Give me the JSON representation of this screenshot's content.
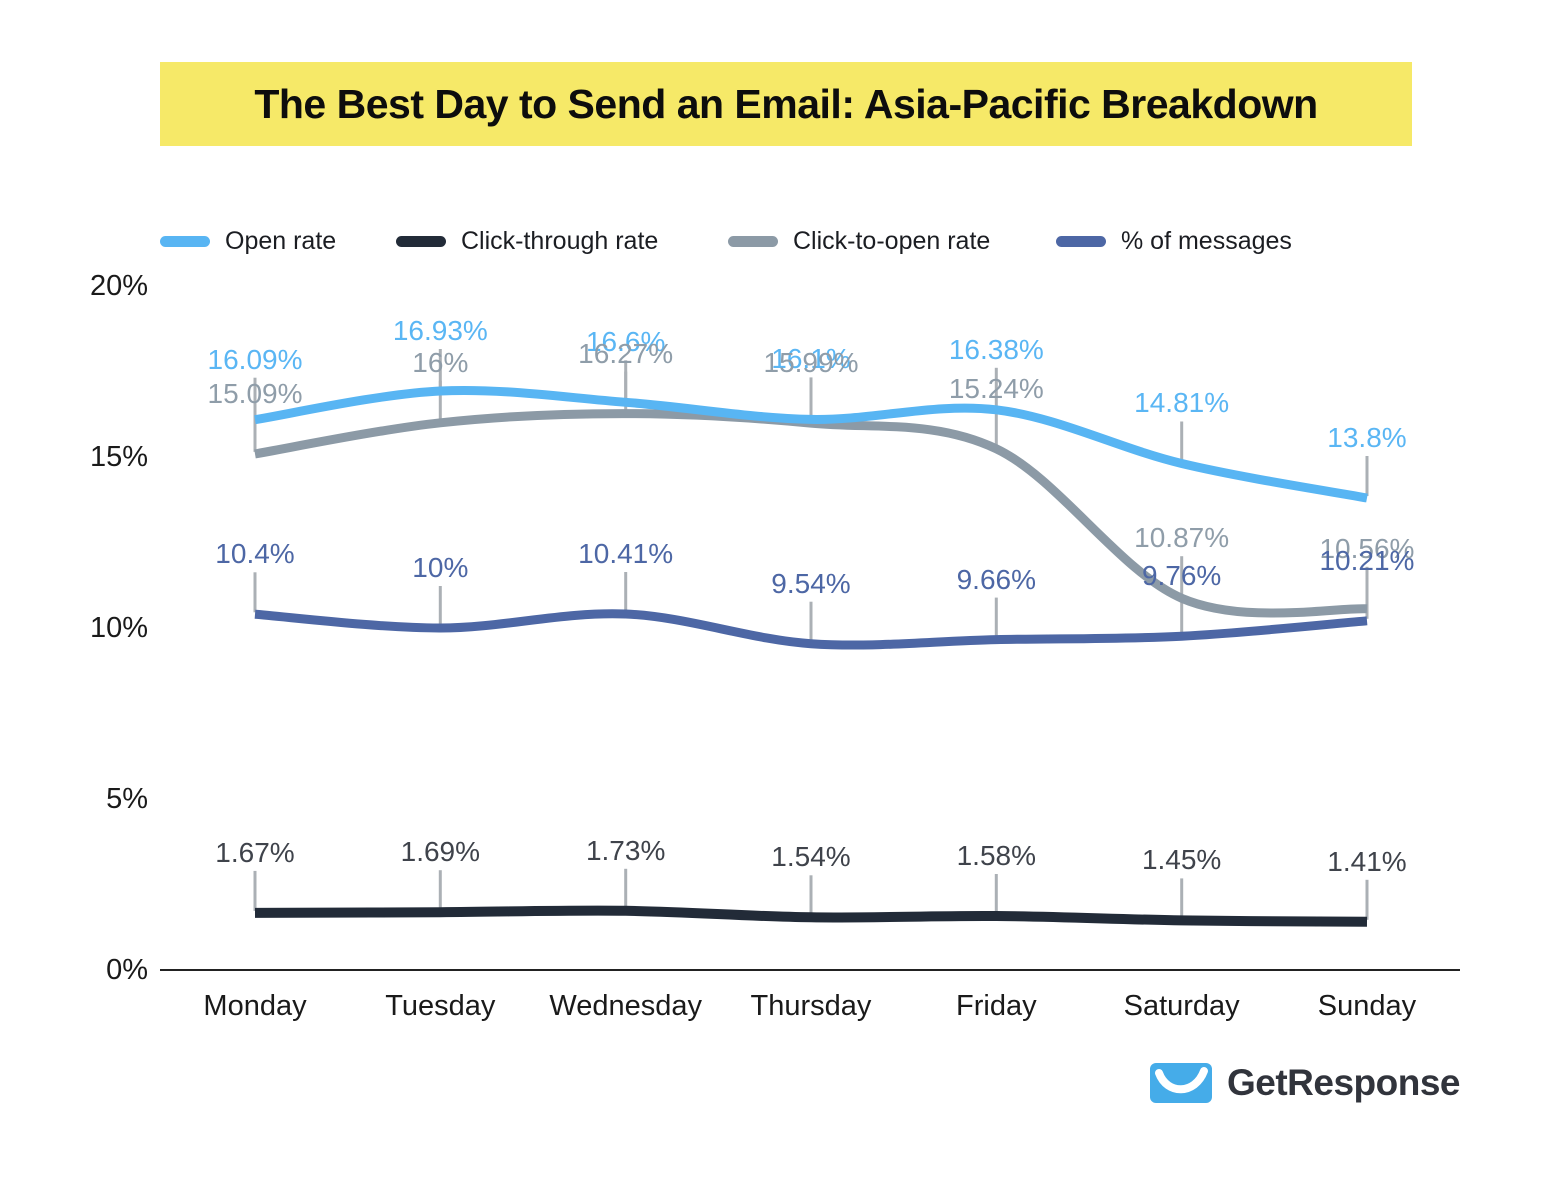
{
  "title": {
    "text": "The Best Day to Send an Email: Asia-Pacific Breakdown",
    "highlight_color": "#F6E968"
  },
  "legend": [
    {
      "label": "Open rate",
      "color": "#58B5F3"
    },
    {
      "label": "Click-through rate",
      "color": "#222B38"
    },
    {
      "label": "Click-to-open rate",
      "color": "#8C9AA6"
    },
    {
      "label": "% of messages",
      "color": "#4D67A5"
    }
  ],
  "chart_data": {
    "type": "line",
    "title": "The Best Day to Send an Email: Asia-Pacific Breakdown",
    "categories": [
      "Monday",
      "Tuesday",
      "Wednesday",
      "Thursday",
      "Friday",
      "Saturday",
      "Sunday"
    ],
    "series": [
      {
        "name": "Open rate",
        "color": "#58B5F3",
        "label_color": "#5AB6F4",
        "values": [
          16.09,
          16.93,
          16.6,
          16.1,
          16.38,
          14.81,
          13.8
        ],
        "labels": [
          "16.09%",
          "16.93%",
          "16.6%",
          "16.1%",
          "16.38%",
          "14.81%",
          "13.8%"
        ]
      },
      {
        "name": "Click-to-open rate",
        "color": "#8C9AA6",
        "label_color": "#8F9DA9",
        "values": [
          15.09,
          16,
          16.27,
          15.99,
          15.24,
          10.87,
          10.56
        ],
        "labels": [
          "15.09%",
          "16%",
          "16.27%",
          "15.99%",
          "15.24%",
          "10.87%",
          "10.56%"
        ]
      },
      {
        "name": "% of messages",
        "color": "#4D67A5",
        "label_color": "#4D67A5",
        "values": [
          10.4,
          10,
          10.41,
          9.54,
          9.66,
          9.76,
          10.21
        ],
        "labels": [
          "10.4%",
          "10%",
          "10.41%",
          "9.54%",
          "9.66%",
          "9.76%",
          "10.21%"
        ]
      },
      {
        "name": "Click-through rate",
        "color": "#222B38",
        "label_color": "#3F434B",
        "values": [
          1.67,
          1.69,
          1.73,
          1.54,
          1.58,
          1.45,
          1.41
        ],
        "labels": [
          "1.67%",
          "1.69%",
          "1.73%",
          "1.54%",
          "1.58%",
          "1.45%",
          "1.41%"
        ]
      }
    ],
    "xlabel": "",
    "ylabel": "",
    "ylim": [
      0,
      20
    ],
    "y_ticks": [
      {
        "label": "20%",
        "value": 20
      },
      {
        "label": "15%",
        "value": 15
      },
      {
        "label": "10%",
        "value": 10
      },
      {
        "label": "5%",
        "value": 5
      },
      {
        "label": "0%",
        "value": 0
      }
    ],
    "grid": false,
    "legend_position": "top"
  },
  "footer": {
    "brand": "GetResponse",
    "brand_color": "#31343C",
    "icon_color": "#45ACE9"
  }
}
